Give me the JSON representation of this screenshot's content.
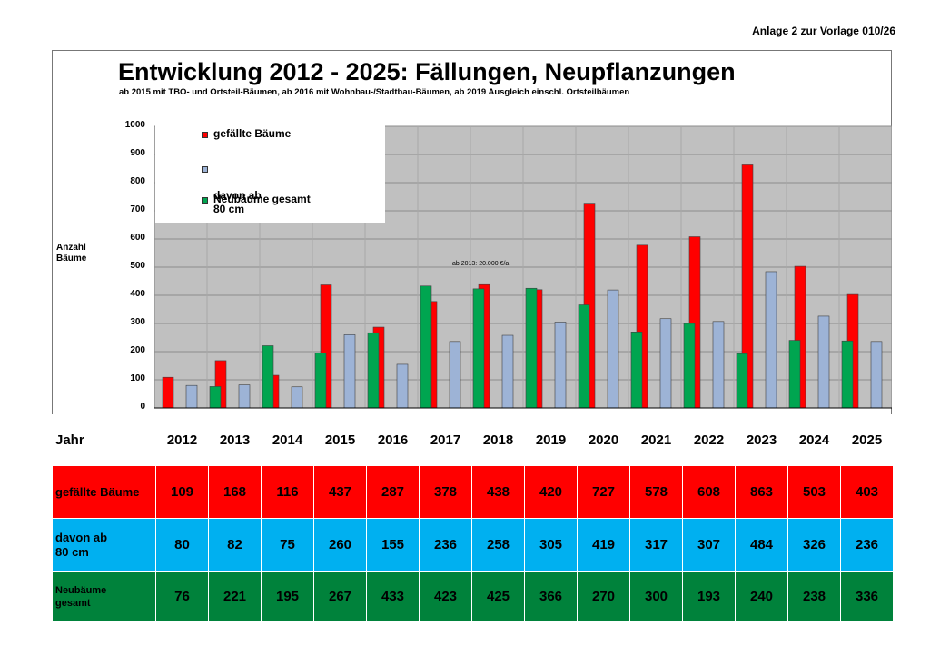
{
  "header": {
    "anlage": "Anlage 2 zur Vorlage 010/26"
  },
  "chart_data": {
    "type": "bar",
    "title": "Entwicklung 2012 - 2025: Fällungen, Neupflanzungen",
    "subtitle": "ab 2015 mit TBO- und Ortsteil-Bäumen, ab 2016 mit Wohnbau-/Stadtbau-Bäumen, ab 2019 Ausgleich einschl. Ortsteilbäumen",
    "xlabel": "",
    "ylabel": "Anzahl Bäume",
    "ylim": [
      0,
      1000
    ],
    "yticks": [
      0,
      100,
      200,
      300,
      400,
      500,
      600,
      700,
      800,
      900,
      1000
    ],
    "grid": true,
    "legend_position": "top-left",
    "annotation": "ab 2013: 20.000 €/a",
    "categories": [
      "2012",
      "2013",
      "2014",
      "2015",
      "2016",
      "2017",
      "2018",
      "2019",
      "2020",
      "2021",
      "2022",
      "2023",
      "2024",
      "2025"
    ],
    "series": [
      {
        "name": "gefällte Bäume",
        "color": "#ff0000",
        "values": [
          109,
          168,
          116,
          437,
          287,
          378,
          438,
          420,
          727,
          578,
          608,
          863,
          503,
          403
        ]
      },
      {
        "name": "davon ab\n80 cm",
        "color": "#9db3d6",
        "values": [
          80,
          82,
          75,
          260,
          155,
          236,
          258,
          305,
          419,
          317,
          307,
          484,
          326,
          236
        ]
      },
      {
        "name": "Neubäume gesamt",
        "color": "#00a550",
        "values": [
          76,
          221,
          195,
          267,
          433,
          423,
          425,
          366,
          270,
          300,
          193,
          240,
          238,
          336
        ]
      }
    ]
  },
  "table": {
    "header_label": "Jahr",
    "rows": [
      {
        "label": "gefällte Bäume",
        "cls": "r-red"
      },
      {
        "label": "davon ab\n80 cm",
        "cls": "r-blue"
      },
      {
        "label": "Neubäume\ngesamt",
        "cls": "r-green"
      }
    ]
  }
}
